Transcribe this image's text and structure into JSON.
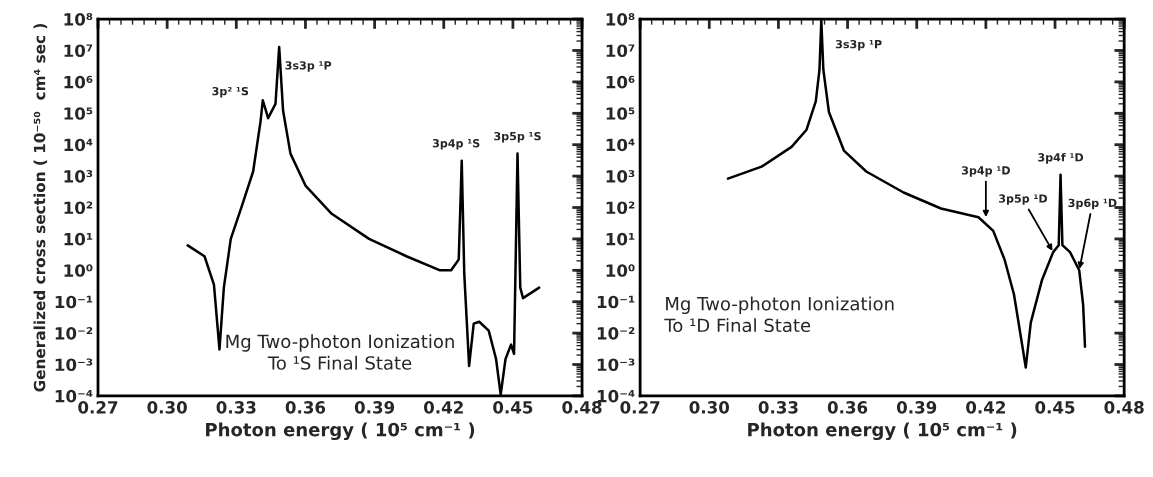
{
  "chart_data": [
    {
      "type": "line",
      "xlabel": "Photon energy ( 10⁵ cm⁻¹ )",
      "ylabel": "Generalized cross section ( 10⁻⁵⁰  cm⁴ sec )",
      "log": "y",
      "grid": false,
      "legend": false,
      "xlim": [
        0.27,
        0.48
      ],
      "xticks": [
        {
          "value": 0.27,
          "label": "0.27"
        },
        {
          "value": 0.3,
          "label": "0.30"
        },
        {
          "value": 0.33,
          "label": "0.33"
        },
        {
          "value": 0.36,
          "label": "0.36"
        },
        {
          "value": 0.39,
          "label": "0.39"
        },
        {
          "value": 0.42,
          "label": "0.42"
        },
        {
          "value": 0.45,
          "label": "0.45"
        },
        {
          "value": 0.48,
          "label": "0.48"
        }
      ],
      "ylim": [
        0.0001,
        100000000
      ],
      "yticks": [
        {
          "value": 0.0001,
          "label": "10⁻⁴"
        },
        {
          "value": 0.001,
          "label": "10⁻³"
        },
        {
          "value": 0.01,
          "label": "10⁻²"
        },
        {
          "value": 0.1,
          "label": "10⁻¹"
        },
        {
          "value": 1,
          "label": "10⁰"
        },
        {
          "value": 10,
          "label": "10¹"
        },
        {
          "value": 100,
          "label": "10²"
        },
        {
          "value": 1000,
          "label": "10³"
        },
        {
          "value": 10000,
          "label": "10⁴"
        },
        {
          "value": 100000,
          "label": "10⁵"
        },
        {
          "value": 1000000,
          "label": "10⁶"
        },
        {
          "value": 10000000,
          "label": "10⁷"
        },
        {
          "value": 100000000,
          "label": "10⁸"
        }
      ],
      "series": [
        {
          "color": "#000000",
          "x": [
            0.3089,
            0.3162,
            0.3203,
            0.3227,
            0.3246,
            0.3276,
            0.3324,
            0.3373,
            0.3405,
            0.3415,
            0.3438,
            0.347,
            0.3486,
            0.3503,
            0.3535,
            0.36,
            0.3714,
            0.3876,
            0.4038,
            0.4184,
            0.4232,
            0.4265,
            0.4278,
            0.4289,
            0.431,
            0.433,
            0.4354,
            0.4395,
            0.4427,
            0.4447,
            0.4468,
            0.4492,
            0.4505,
            0.452,
            0.4532,
            0.4544,
            0.4614
          ],
          "values": [
            6.2,
            2.8,
            0.35,
            0.003,
            0.28,
            10,
            110,
            1400,
            54000,
            260000,
            70000,
            200000,
            13000000,
            120000,
            5200,
            500,
            63,
            10,
            2.8,
            1,
            1,
            2.2,
            3100,
            0.78,
            0.0009,
            0.02,
            0.023,
            0.012,
            0.0015,
            0.00011,
            0.0015,
            0.0043,
            0.0022,
            5200,
            0.28,
            0.13,
            0.28
          ]
        }
      ],
      "annotations": [
        {
          "text": "3p² ¹S",
          "x": 0.3415,
          "y": 260000
        },
        {
          "text": "3s3p ¹P",
          "x": 0.3486,
          "y": 13000000
        },
        {
          "text": "3p4p ¹S",
          "x": 0.4278,
          "y": 3100
        },
        {
          "text": "3p5p ¹S",
          "x": 0.452,
          "y": 5200
        },
        "Mg Two-photon Ionization\nTo ¹S Final State"
      ]
    },
    {
      "type": "line",
      "xlabel": "Photon energy ( 10⁵ cm⁻¹ )",
      "log": "y",
      "grid": false,
      "legend": false,
      "xlim": [
        0.27,
        0.48
      ],
      "xticks": [
        {
          "value": 0.27,
          "label": "0.27"
        },
        {
          "value": 0.3,
          "label": "0.30"
        },
        {
          "value": 0.33,
          "label": "0.33"
        },
        {
          "value": 0.36,
          "label": "0.36"
        },
        {
          "value": 0.39,
          "label": "0.39"
        },
        {
          "value": 0.42,
          "label": "0.42"
        },
        {
          "value": 0.45,
          "label": "0.45"
        },
        {
          "value": 0.48,
          "label": "0.48"
        }
      ],
      "ylim": [
        0.0001,
        100000000
      ],
      "yticks": [
        {
          "value": 0.0001,
          "label": "10⁻⁴"
        },
        {
          "value": 0.001,
          "label": "10⁻³"
        },
        {
          "value": 0.01,
          "label": "10⁻²"
        },
        {
          "value": 0.1,
          "label": "10⁻¹"
        },
        {
          "value": 1,
          "label": "10⁰"
        },
        {
          "value": 10,
          "label": "10¹"
        },
        {
          "value": 100,
          "label": "10²"
        },
        {
          "value": 1000,
          "label": "10³"
        },
        {
          "value": 10000,
          "label": "10⁴"
        },
        {
          "value": 100000,
          "label": "10⁵"
        },
        {
          "value": 1000000,
          "label": "10⁶"
        },
        {
          "value": 10000000,
          "label": "10⁷"
        },
        {
          "value": 100000000,
          "label": "10⁸"
        }
      ],
      "series": [
        {
          "color": "#000000",
          "x": [
            0.3081,
            0.3227,
            0.3357,
            0.3422,
            0.3462,
            0.3478,
            0.3486,
            0.3495,
            0.3519,
            0.3584,
            0.3681,
            0.3843,
            0.4005,
            0.4168,
            0.4232,
            0.4281,
            0.4322,
            0.4354,
            0.4373,
            0.4395,
            0.4443,
            0.4492,
            0.4516,
            0.4524,
            0.4532,
            0.4565,
            0.4605,
            0.4622,
            0.463
          ],
          "values": [
            830,
            2000,
            8500,
            30000,
            240000,
            2400000,
            90000000,
            2400000,
            110000,
            6500,
            1400,
            300,
            93,
            49,
            18,
            2.2,
            0.17,
            0.006,
            0.0008,
            0.022,
            0.48,
            3.8,
            6.3,
            1100,
            6.3,
            3.8,
            1,
            0.08,
            0.0037
          ]
        }
      ],
      "annotations": [
        {
          "text": "3s3p ¹P",
          "x": 0.3486,
          "y": 10000000
        },
        {
          "text": "3p4p ¹D",
          "x": 0.42,
          "y": 45
        },
        {
          "text": "3p5p ¹D",
          "x": 0.4492,
          "y": 3.8
        },
        {
          "text": "3p4f ¹D",
          "x": 0.4524,
          "y": 1100
        },
        {
          "text": "3p6p ¹D",
          "x": 0.4605,
          "y": 1
        },
        "Mg Two-photon Ionization\nTo ¹D Final State"
      ]
    }
  ]
}
